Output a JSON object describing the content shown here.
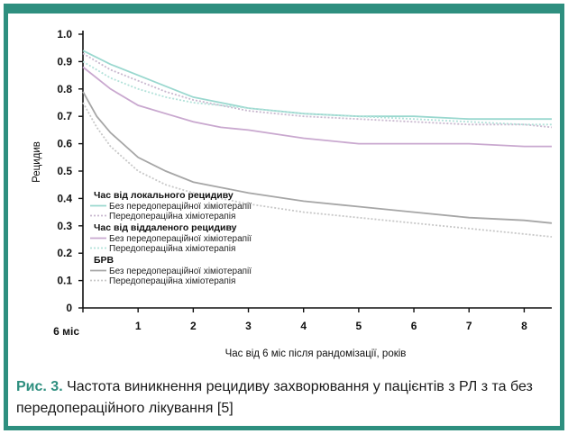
{
  "chart_data": {
    "type": "line",
    "ylabel": "Рецидив",
    "xlabel": "Час від 6 міс після рандомізації, років",
    "xlim": [
      0,
      8.5
    ],
    "ylim": [
      0,
      1.0
    ],
    "x_tick_first_label": "6 міс",
    "x_ticks": [
      0,
      1,
      2,
      3,
      4,
      5,
      6,
      7,
      8
    ],
    "x_tick_labels": [
      "6 міс",
      "1",
      "2",
      "3",
      "4",
      "5",
      "6",
      "7",
      "8"
    ],
    "y_ticks": [
      0,
      0.1,
      0.2,
      0.3,
      0.4,
      0.5,
      0.6,
      0.7,
      0.8,
      0.9,
      1.0
    ],
    "y_tick_labels": [
      "0",
      "0.1",
      "0.2",
      "0.3",
      "0.4",
      "0.5",
      "0.6",
      "0.7",
      "0.8",
      "0.9",
      "1.0"
    ],
    "grid": false,
    "legend_position": "lower-left",
    "legend_groups": [
      {
        "title": "Час від локального рецидиву",
        "entries": [
          "Без передопераційної хіміотерапії",
          "Передопераційна хіміотерапія"
        ]
      },
      {
        "title": "Час від віддаленого рецидиву",
        "entries": [
          "Без передопераційної хіміотерапії",
          "Передопераційна хіміотерапія"
        ]
      },
      {
        "title": "БРВ",
        "entries": [
          "Без передопераційної хіміотерапії",
          "Передопераційна хіміотерапія"
        ]
      }
    ],
    "series": [
      {
        "color": "#9ad8cf",
        "dash": "",
        "x": [
          0,
          0.5,
          1,
          1.5,
          2,
          2.5,
          3,
          4,
          5,
          6,
          7,
          8,
          8.5
        ],
        "y": [
          0.94,
          0.89,
          0.85,
          0.81,
          0.77,
          0.75,
          0.73,
          0.71,
          0.7,
          0.7,
          0.69,
          0.69,
          0.69
        ]
      },
      {
        "color": "#c9b8cf",
        "dash": "2,2",
        "x": [
          0,
          0.5,
          1,
          1.5,
          2,
          2.5,
          3,
          4,
          5,
          6,
          7,
          8,
          8.5
        ],
        "y": [
          0.93,
          0.87,
          0.83,
          0.79,
          0.76,
          0.74,
          0.72,
          0.7,
          0.69,
          0.68,
          0.67,
          0.67,
          0.66
        ]
      },
      {
        "color": "#c9a8cf",
        "dash": "",
        "x": [
          0,
          0.5,
          1,
          1.5,
          2,
          2.5,
          3,
          4,
          5,
          6,
          7,
          8,
          8.5
        ],
        "y": [
          0.88,
          0.8,
          0.74,
          0.71,
          0.68,
          0.66,
          0.65,
          0.62,
          0.6,
          0.6,
          0.6,
          0.59,
          0.59
        ]
      },
      {
        "color": "#b3e2da",
        "dash": "2,2",
        "x": [
          0,
          0.5,
          1,
          1.5,
          2,
          2.5,
          3,
          4,
          5,
          6,
          7,
          8,
          8.5
        ],
        "y": [
          0.9,
          0.84,
          0.8,
          0.77,
          0.75,
          0.74,
          0.73,
          0.71,
          0.7,
          0.69,
          0.68,
          0.67,
          0.67
        ]
      },
      {
        "color": "#a6a6a6",
        "dash": "",
        "x": [
          0,
          0.25,
          0.5,
          1,
          1.5,
          2,
          2.5,
          3,
          4,
          5,
          6,
          7,
          8,
          8.5
        ],
        "y": [
          0.79,
          0.7,
          0.64,
          0.55,
          0.5,
          0.46,
          0.44,
          0.42,
          0.39,
          0.37,
          0.35,
          0.33,
          0.32,
          0.31
        ]
      },
      {
        "color": "#c8c8c8",
        "dash": "2,2",
        "x": [
          0,
          0.25,
          0.5,
          1,
          1.5,
          2,
          2.5,
          3,
          4,
          5,
          6,
          7,
          8,
          8.5
        ],
        "y": [
          0.75,
          0.66,
          0.59,
          0.5,
          0.45,
          0.42,
          0.4,
          0.38,
          0.35,
          0.33,
          0.31,
          0.29,
          0.27,
          0.26
        ]
      }
    ]
  },
  "caption": {
    "figure_label": "Рис. 3.",
    "text": "Частота виникнення рецидиву захворювання у пацієнтів з РЛ з та без передопераційного лікування [5]"
  }
}
